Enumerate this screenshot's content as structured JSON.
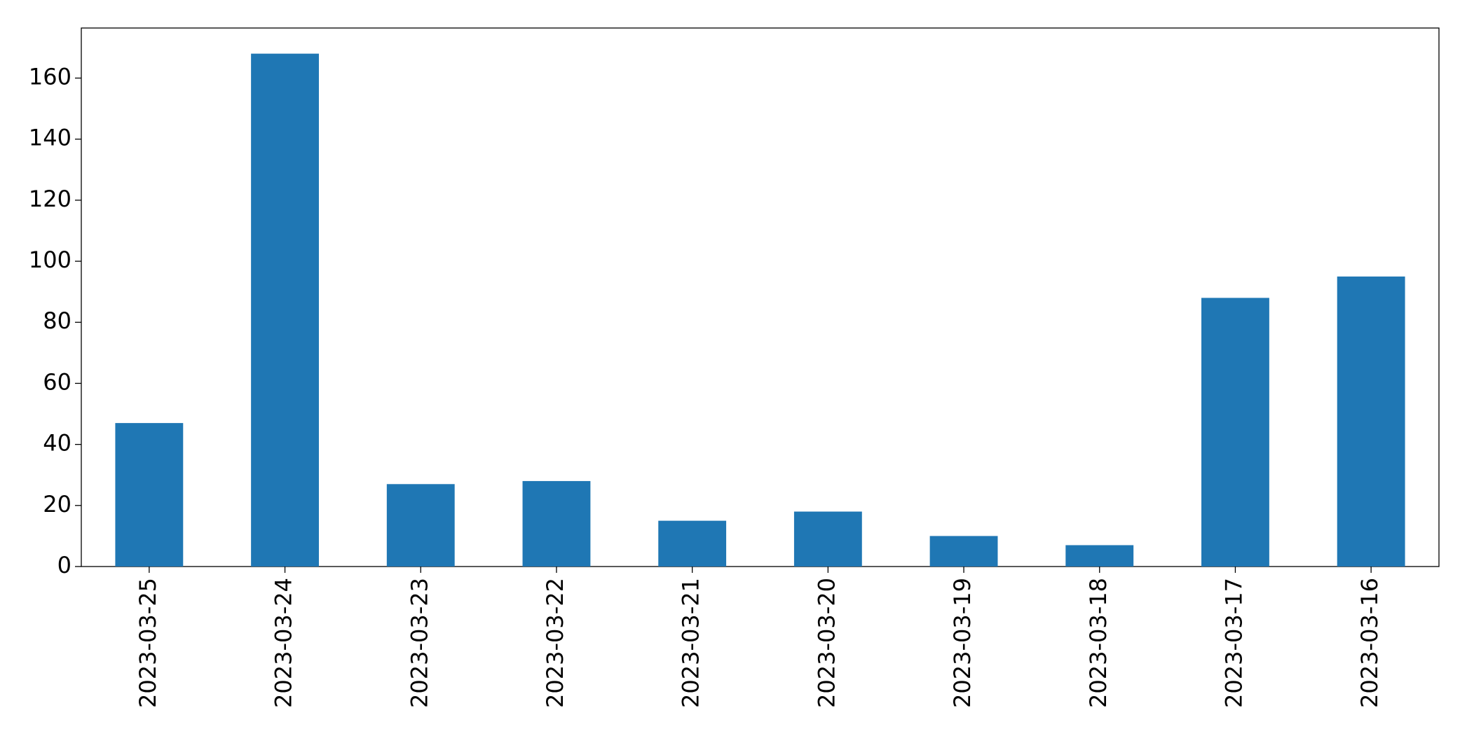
{
  "chart_data": {
    "type": "bar",
    "categories": [
      "2023-03-25",
      "2023-03-24",
      "2023-03-23",
      "2023-03-22",
      "2023-03-21",
      "2023-03-20",
      "2023-03-19",
      "2023-03-18",
      "2023-03-17",
      "2023-03-16"
    ],
    "values": [
      47,
      168,
      27,
      28,
      15,
      18,
      10,
      7,
      88,
      95
    ],
    "color": "#1f77b4",
    "ylim": [
      0,
      176.4
    ],
    "yticks": [
      0,
      20,
      40,
      60,
      80,
      100,
      120,
      140,
      160
    ],
    "grid": false
  }
}
